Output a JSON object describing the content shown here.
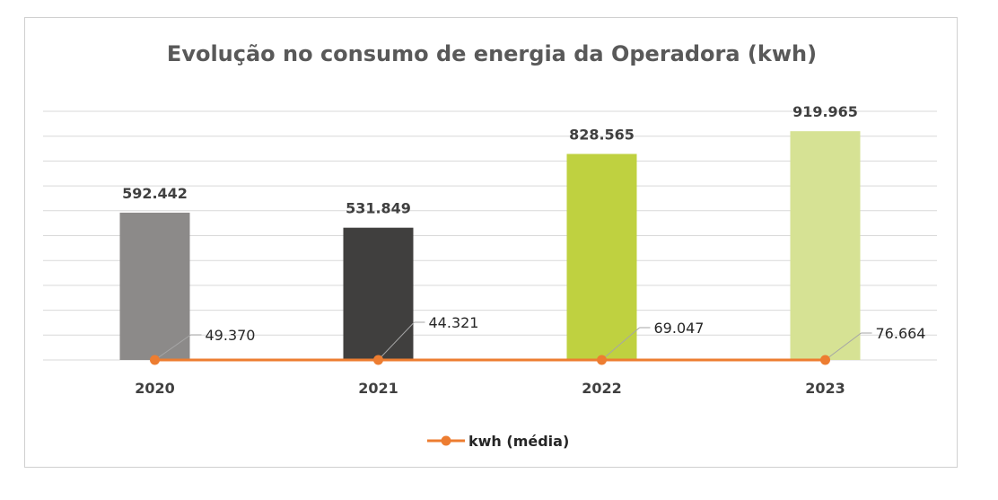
{
  "chart_data": {
    "type": "bar",
    "title": "Evolução no consumo de energia da Operadora (kwh)",
    "categories": [
      "2020",
      "2021",
      "2022",
      "2023"
    ],
    "bar_values": [
      592442,
      531849,
      828565,
      919965
    ],
    "bar_labels": [
      "592.442",
      "531.849",
      "828.565",
      "919.965"
    ],
    "bar_colors": [
      "#8c8a89",
      "#403f3e",
      "#bfd140",
      "#d6e294"
    ],
    "line_series": {
      "name": "kwh (média)",
      "values": [
        49370,
        44321,
        69047,
        76664
      ],
      "labels": [
        "49.370",
        "44.321",
        "69.047",
        "76.664"
      ],
      "color": "#ed7d31"
    },
    "ylim": [
      0,
      1000000
    ],
    "grid": true,
    "legend_position": "bottom"
  }
}
